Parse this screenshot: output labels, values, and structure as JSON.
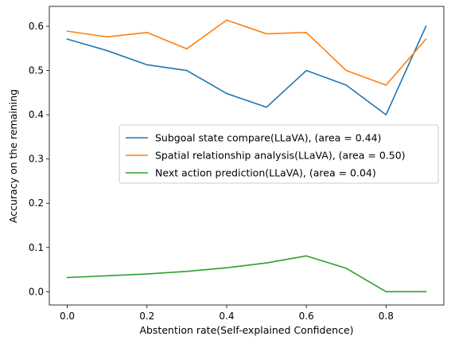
{
  "chart_data": {
    "type": "line",
    "xlabel": "Abstention rate(Self-explained Confidence)",
    "ylabel": "Accuracy on the remaining",
    "xlim": [
      -0.045,
      0.945
    ],
    "ylim": [
      -0.03,
      0.645
    ],
    "xticks": [
      0.0,
      0.2,
      0.4,
      0.6,
      0.8
    ],
    "xtick_labels": [
      "0.0",
      "0.2",
      "0.4",
      "0.6",
      "0.8"
    ],
    "yticks": [
      0.0,
      0.1,
      0.2,
      0.3,
      0.4,
      0.5,
      0.6
    ],
    "ytick_labels": [
      "0.0",
      "0.1",
      "0.2",
      "0.3",
      "0.4",
      "0.5",
      "0.6"
    ],
    "grid": false,
    "legend_position": "center-right",
    "x": [
      0.0,
      0.1,
      0.2,
      0.3,
      0.4,
      0.5,
      0.6,
      0.7,
      0.8,
      0.9
    ],
    "series": [
      {
        "name": "Subgoal state compare(LLaVA), (area = 0.44)",
        "color": "#1f77b4",
        "values": [
          0.571,
          0.545,
          0.513,
          0.5,
          0.448,
          0.417,
          0.5,
          0.467,
          0.4,
          0.6
        ]
      },
      {
        "name": "Spatial relationship analysis(LLaVA), (area = 0.50)",
        "color": "#ff7f0e",
        "values": [
          0.589,
          0.576,
          0.586,
          0.549,
          0.614,
          0.583,
          0.586,
          0.5,
          0.467,
          0.571
        ]
      },
      {
        "name": "Next action prediction(LLaVA), (area = 0.04)",
        "color": "#2ca02c",
        "values": [
          0.032,
          0.036,
          0.04,
          0.046,
          0.054,
          0.065,
          0.081,
          0.053,
          0.0,
          0.0
        ]
      }
    ]
  }
}
